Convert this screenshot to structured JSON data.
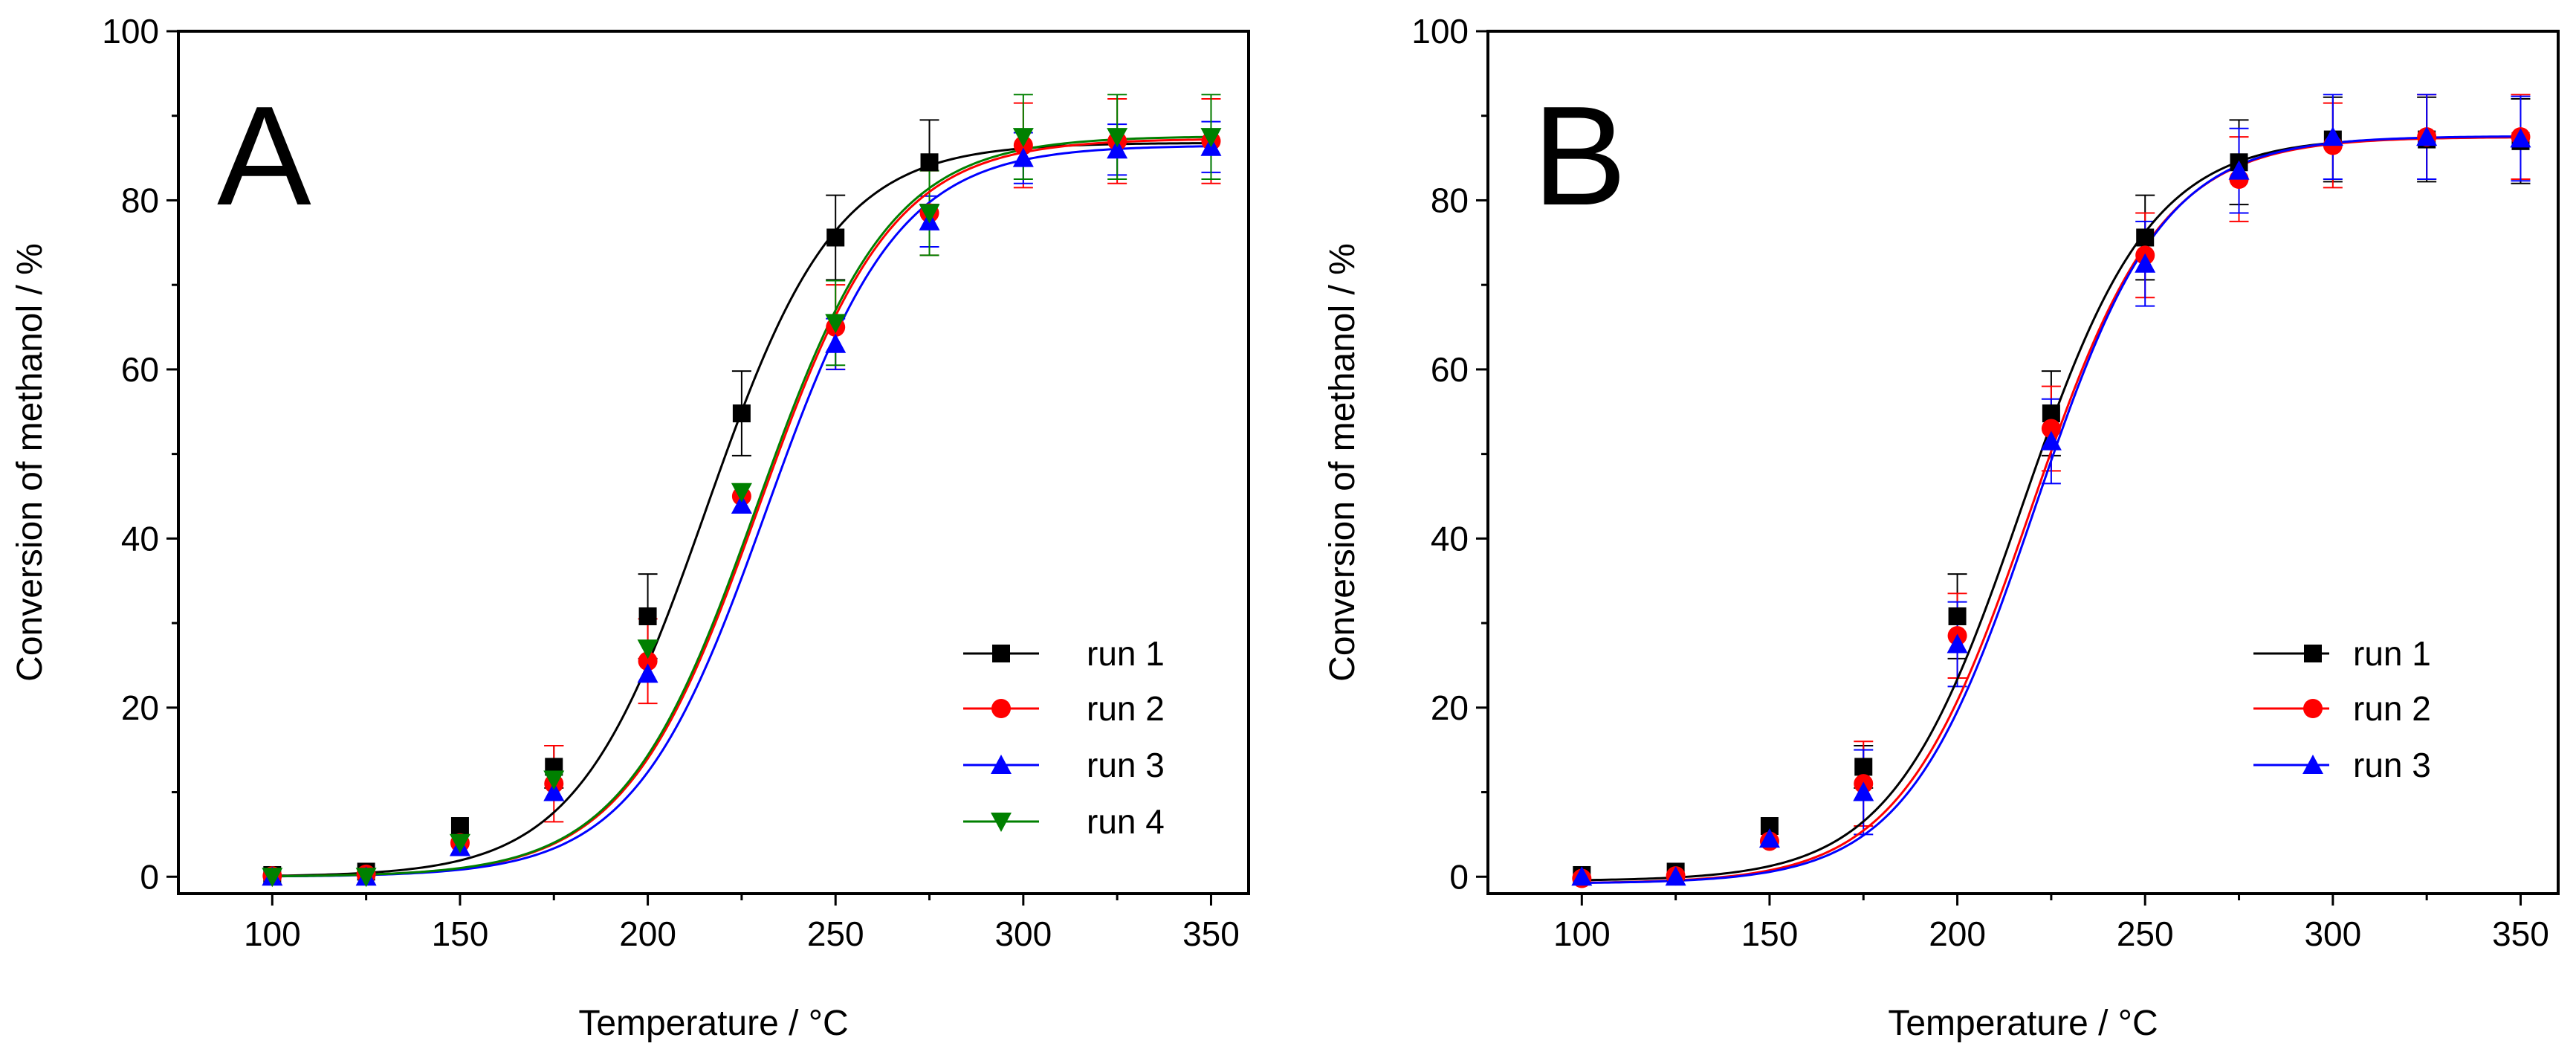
{
  "chart_data": [
    {
      "type": "line",
      "panel_label": "A",
      "xlabel": "Temperature / °C",
      "ylabel": "Conversion of methanol / %",
      "xlim": [
        75,
        360
      ],
      "ylim": [
        -2,
        100
      ],
      "xticks": [
        100,
        150,
        200,
        250,
        300,
        350
      ],
      "yticks": [
        0,
        20,
        40,
        60,
        80,
        100
      ],
      "legend_position": "bottom-right",
      "series": [
        {
          "name": "run 1",
          "color": "#000000",
          "marker": "square",
          "x": [
            100,
            125,
            150,
            175,
            200,
            225,
            250,
            275
          ],
          "y": [
            0.2,
            0.6,
            6.0,
            13.0,
            30.8,
            54.8,
            75.6,
            84.5
          ],
          "yerr": [
            0,
            0,
            0,
            2.5,
            5.0,
            5.0,
            5.0,
            5.0
          ],
          "fit": {
            "A1": 0,
            "A2": 86.8,
            "x0": 215.5,
            "dx": 17.3
          }
        },
        {
          "name": "run 2",
          "color": "#ff0000",
          "marker": "circle",
          "x": [
            100,
            125,
            150,
            175,
            200,
            225,
            250,
            275,
            300,
            325,
            350
          ],
          "y": [
            0.1,
            0.3,
            4.0,
            11.0,
            25.5,
            45.0,
            65.0,
            78.5,
            86.5,
            87.0,
            87.0
          ],
          "yerr": [
            0,
            0,
            0,
            4.5,
            5.0,
            0,
            5.0,
            5.0,
            5.0,
            5.0,
            5.0
          ],
          "fit": {
            "A1": 0,
            "A2": 87.3,
            "x0": 229.5,
            "dx": 17.8
          }
        },
        {
          "name": "run 3",
          "color": "#0000ff",
          "marker": "triangle-up",
          "x": [
            100,
            125,
            150,
            175,
            200,
            225,
            250,
            275,
            300,
            325,
            350
          ],
          "y": [
            0.0,
            0.0,
            3.5,
            10.0,
            24.0,
            44.0,
            63.0,
            77.5,
            85.0,
            86.0,
            86.3
          ],
          "yerr": [
            0,
            0,
            0,
            0,
            0,
            0,
            3.0,
            3.0,
            3.0,
            3.0,
            3.0
          ],
          "fit": {
            "A1": 0,
            "A2": 86.5,
            "x0": 231.5,
            "dx": 17.6
          }
        },
        {
          "name": "run 4",
          "color": "#008000",
          "marker": "triangle-down",
          "x": [
            100,
            125,
            150,
            175,
            200,
            225,
            250,
            275,
            300,
            325,
            350
          ],
          "y": [
            0.0,
            0.0,
            4.0,
            11.5,
            27.0,
            45.5,
            65.5,
            78.5,
            87.5,
            87.5,
            87.5
          ],
          "yerr": [
            0,
            0,
            0,
            0,
            0,
            0,
            5.0,
            5.0,
            5.0,
            5.0,
            5.0
          ],
          "fit": {
            "A1": 0,
            "A2": 87.6,
            "x0": 229.0,
            "dx": 17.8
          }
        }
      ]
    },
    {
      "type": "line",
      "panel_label": "B",
      "xlabel": "Temperature / °C",
      "ylabel": "Conversion of methanol / %",
      "xlim": [
        75,
        360
      ],
      "ylim": [
        -2,
        100
      ],
      "xticks": [
        100,
        150,
        200,
        250,
        300,
        350
      ],
      "yticks": [
        0,
        20,
        40,
        60,
        80,
        100
      ],
      "legend_position": "bottom-right",
      "series": [
        {
          "name": "run 1",
          "color": "#000000",
          "marker": "square",
          "x": [
            100,
            125,
            150,
            175,
            200,
            225,
            250,
            275,
            300,
            325,
            350
          ],
          "y": [
            0.2,
            0.6,
            6.0,
            13.0,
            30.8,
            54.8,
            75.6,
            84.5,
            87.2,
            87.2,
            87.0
          ],
          "yerr": [
            0,
            0,
            0,
            2.5,
            5.0,
            5.0,
            5.0,
            5.0,
            5.0,
            5.0,
            5.0
          ],
          "fit": {
            "A1": -0.5,
            "A2": 87.5,
            "x0": 217.0,
            "dx": 17.2
          }
        },
        {
          "name": "run 2",
          "color": "#ff0000",
          "marker": "circle",
          "x": [
            100,
            125,
            150,
            175,
            200,
            225,
            250,
            275,
            300,
            325,
            350
          ],
          "y": [
            -0.2,
            0.1,
            4.2,
            11.0,
            28.5,
            53.0,
            73.5,
            82.5,
            86.5,
            87.5,
            87.5
          ],
          "yerr": [
            0,
            0,
            0,
            5.0,
            5.0,
            5.0,
            5.0,
            5.0,
            5.0,
            5.0,
            5.0
          ],
          "fit": {
            "A1": -0.8,
            "A2": 87.5,
            "x0": 219.5,
            "dx": 17.3
          }
        },
        {
          "name": "run 3",
          "color": "#0000ff",
          "marker": "triangle-up",
          "x": [
            100,
            125,
            150,
            175,
            200,
            225,
            250,
            275,
            300,
            325,
            350
          ],
          "y": [
            0.0,
            0.0,
            4.5,
            10.0,
            27.5,
            51.5,
            72.5,
            83.5,
            87.5,
            87.5,
            87.3
          ],
          "yerr": [
            0,
            0,
            0,
            5.0,
            5.0,
            5.0,
            5.0,
            5.0,
            5.0,
            5.0,
            5.0
          ],
          "fit": {
            "A1": -0.8,
            "A2": 87.6,
            "x0": 220.5,
            "dx": 17.0
          }
        }
      ]
    }
  ]
}
